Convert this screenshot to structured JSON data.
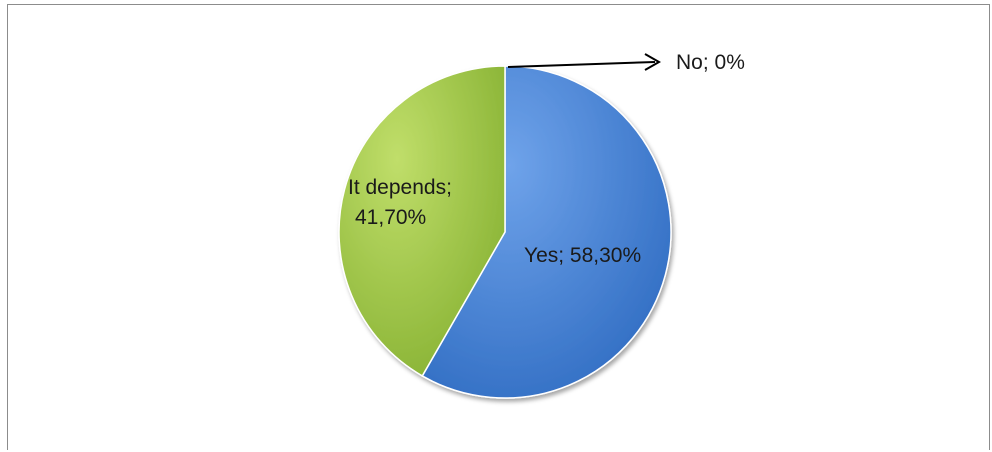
{
  "chart_data": {
    "type": "pie",
    "title": "",
    "slices": [
      {
        "category": "Yes",
        "value": 58.3,
        "label": "Yes; 58,30%",
        "color": "#3f7fd6"
      },
      {
        "category": "It depends",
        "value": 41.7,
        "label_line1": "It depends;",
        "label_line2": "41,70%",
        "color": "#9ec544"
      },
      {
        "category": "No",
        "value": 0,
        "label": "No; 0%",
        "color": "#c0504d"
      }
    ],
    "legend": "none",
    "start_angle": "12 o'clock, clockwise"
  }
}
